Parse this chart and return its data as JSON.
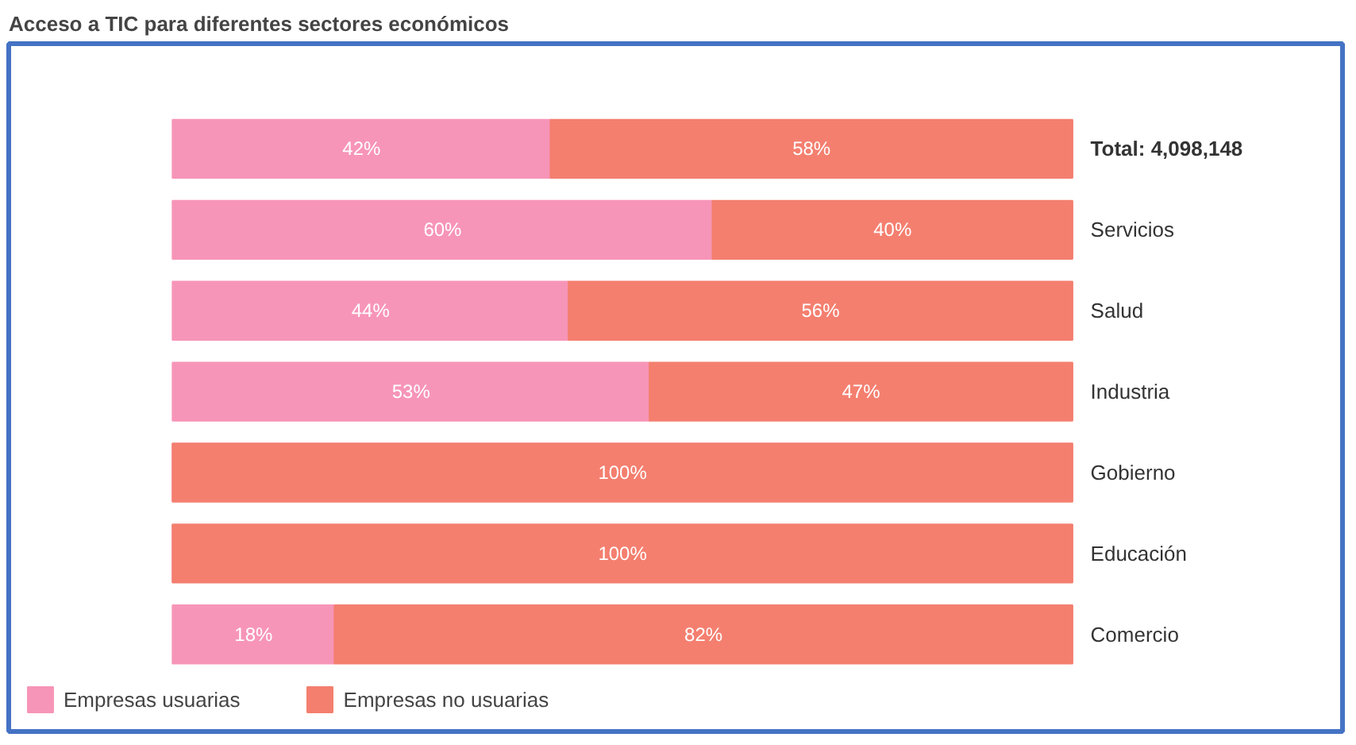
{
  "chart_data": {
    "type": "bar",
    "orientation": "horizontal",
    "stacked": true,
    "title": "Acceso a TIC para diferentes sectores económicos",
    "categories": [
      "Total: 4,098,148",
      "Servicios",
      "Salud",
      "Industria",
      "Gobierno",
      "Educación",
      "Comercio"
    ],
    "series": [
      {
        "name": "Empresas usuarias",
        "color": "#f795b8",
        "values": [
          42,
          60,
          44,
          53,
          0,
          0,
          18
        ],
        "value_labels": [
          "42%",
          "60%",
          "44%",
          "53%",
          null,
          null,
          "18%"
        ]
      },
      {
        "name": "Empresas no usuarias",
        "color": "#f47f6f",
        "values": [
          58,
          40,
          56,
          47,
          100,
          100,
          82
        ],
        "value_labels": [
          "58%",
          "40%",
          "56%",
          "47%",
          "100%",
          "100%",
          "82%"
        ]
      }
    ],
    "legend": "bottom left"
  }
}
